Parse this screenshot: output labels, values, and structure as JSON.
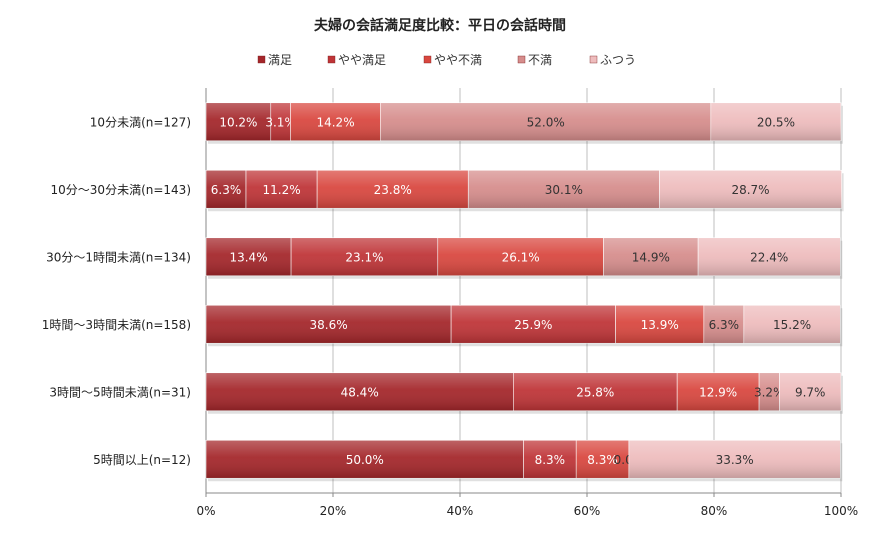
{
  "chart_data": {
    "type": "bar",
    "orientation": "horizontal",
    "stacked": "percent",
    "title": "夫婦の会話満足度比較：平日の会話時間",
    "categories": [
      "10分未満(n=127)",
      "10分～30分未満(n=143)",
      "30分～1時間未満(n=134)",
      "1時間～3時間未満(n=158)",
      "3時間～5時間未満(n=31)",
      "5時間以上(n=12)"
    ],
    "series": [
      {
        "name": "満足",
        "color": "#a4262a",
        "values": [
          10.2,
          6.3,
          13.4,
          38.6,
          48.4,
          50.0
        ],
        "labels": [
          "10.2%",
          "6.3%",
          "13.4%",
          "38.6%",
          "48.4%",
          "50.0%"
        ]
      },
      {
        "name": "やや満足",
        "color": "#bf3437",
        "values": [
          3.1,
          11.2,
          23.1,
          25.9,
          25.8,
          8.3
        ],
        "labels": [
          "3.1%",
          "11.2%",
          "23.1%",
          "25.9%",
          "25.8%",
          "8.3%"
        ]
      },
      {
        "name": "やや不満",
        "color": "#d9473f",
        "values": [
          14.2,
          23.8,
          26.1,
          13.9,
          12.9,
          8.3
        ],
        "labels": [
          "14.2%",
          "23.8%",
          "26.1%",
          "13.9%",
          "12.9%",
          "8.3%"
        ]
      },
      {
        "name": "不満",
        "color": "#d68d8c",
        "values": [
          52.0,
          30.1,
          14.9,
          6.3,
          3.2,
          0.0
        ],
        "labels": [
          "52.0%",
          "30.1%",
          "14.9%",
          "6.3%",
          "3.2%",
          "0.0%"
        ]
      },
      {
        "name": "ふつう",
        "color": "#eebcbd",
        "values": [
          20.5,
          28.7,
          22.4,
          15.2,
          9.7,
          33.3
        ],
        "labels": [
          "20.5%",
          "28.7%",
          "22.4%",
          "15.2%",
          "9.7%",
          "33.3%"
        ]
      }
    ],
    "xlim": [
      0,
      100
    ],
    "xticks": [
      "0%",
      "20%",
      "40%",
      "60%",
      "80%",
      "100%"
    ],
    "grid": true,
    "legend": "top"
  }
}
